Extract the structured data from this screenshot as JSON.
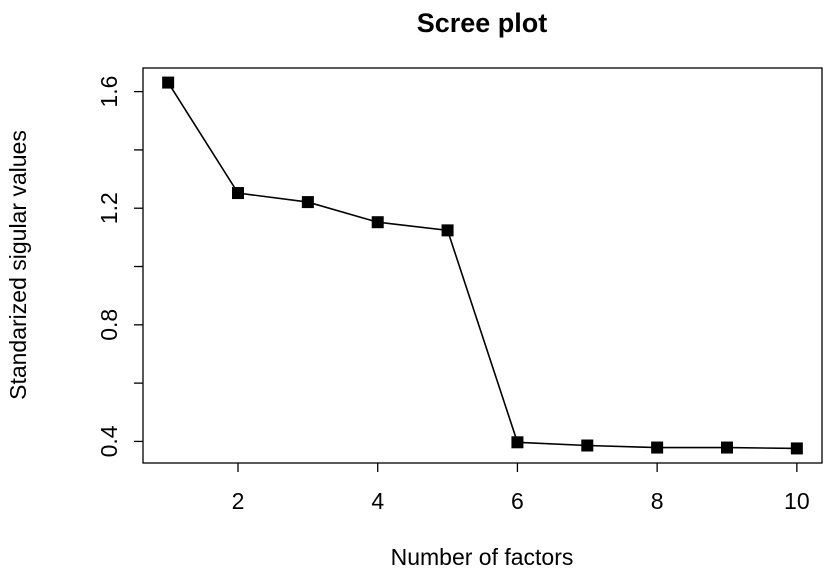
{
  "chart_data": {
    "type": "line",
    "title": "Scree plot",
    "x_label": "Number of factors",
    "y_label": "Standarized sigular values",
    "x": [
      1,
      2,
      3,
      4,
      5,
      6,
      7,
      8,
      9,
      10
    ],
    "values": [
      1.631,
      1.252,
      1.221,
      1.152,
      1.124,
      0.397,
      0.386,
      0.379,
      0.379,
      0.376
    ],
    "color": "#000000",
    "marker": "square",
    "xlim": [
      0.64,
      10.36
    ],
    "xticks": [
      2,
      4,
      6,
      8,
      10
    ],
    "ylim": [
      0.326,
      1.681
    ],
    "yticks": [
      0.4,
      0.8,
      1.2,
      1.6
    ],
    "yminor_ticks": [
      0.6,
      1.0,
      1.4
    ]
  }
}
